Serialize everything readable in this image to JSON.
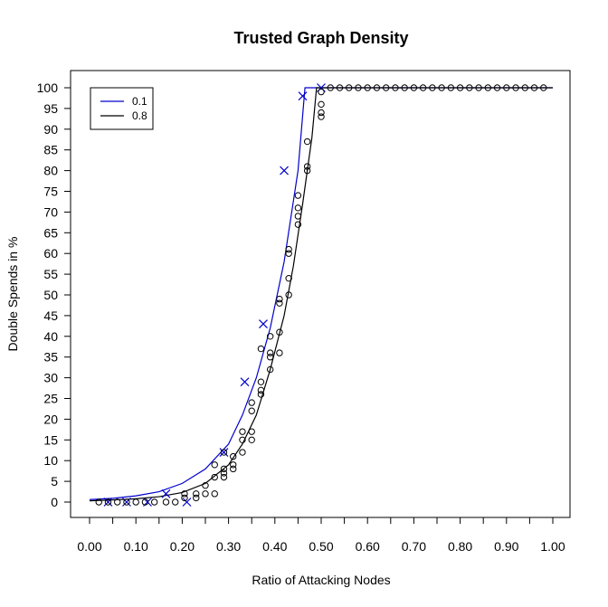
{
  "chart_data": {
    "type": "scatter",
    "title": "Trusted Graph Density",
    "xlabel": "Ratio of Attacking Nodes",
    "ylabel": "Double Spends in %",
    "xlim": [
      0.0,
      1.0
    ],
    "ylim": [
      0,
      100
    ],
    "x_ticks": [
      0.0,
      0.1,
      0.2,
      0.3,
      0.4,
      0.5,
      0.6,
      0.7,
      0.8,
      0.9,
      1.0
    ],
    "x_tick_labels": [
      "0.00",
      "0.10",
      "0.20",
      "0.30",
      "0.40",
      "0.50",
      "0.60",
      "0.70",
      "0.80",
      "0.90",
      "1.00"
    ],
    "y_ticks": [
      0,
      5,
      10,
      15,
      20,
      25,
      30,
      35,
      40,
      45,
      50,
      55,
      60,
      65,
      70,
      75,
      80,
      85,
      90,
      95,
      100
    ],
    "y_tick_labels": [
      "0",
      "5",
      "10",
      "15",
      "20",
      "25",
      "30",
      "35",
      "40",
      "45",
      "50",
      "55",
      "60",
      "65",
      "70",
      "75",
      "80",
      "85",
      "90",
      "95",
      "100"
    ],
    "grid": false,
    "legend_position": "top-left",
    "series": [
      {
        "name": "0.1",
        "color": "#0000cc",
        "marker": "x",
        "points": [
          [
            0.04,
            0
          ],
          [
            0.08,
            0
          ],
          [
            0.125,
            0
          ],
          [
            0.165,
            2
          ],
          [
            0.21,
            0
          ],
          [
            0.29,
            12
          ],
          [
            0.335,
            29
          ],
          [
            0.375,
            43
          ],
          [
            0.42,
            80
          ],
          [
            0.46,
            98
          ],
          [
            0.5,
            100
          ]
        ],
        "curve": [
          [
            0.0,
            0.6
          ],
          [
            0.05,
            0.9
          ],
          [
            0.1,
            1.5
          ],
          [
            0.15,
            2.5
          ],
          [
            0.2,
            4.5
          ],
          [
            0.25,
            8
          ],
          [
            0.3,
            14
          ],
          [
            0.33,
            21
          ],
          [
            0.36,
            30
          ],
          [
            0.39,
            42
          ],
          [
            0.42,
            58
          ],
          [
            0.45,
            80
          ],
          [
            0.465,
            100
          ],
          [
            0.5,
            100
          ],
          [
            1.0,
            100
          ]
        ]
      },
      {
        "name": "0.8",
        "color": "#000000",
        "marker": "circle",
        "points": [
          [
            0.02,
            0
          ],
          [
            0.04,
            0
          ],
          [
            0.06,
            0
          ],
          [
            0.08,
            0
          ],
          [
            0.1,
            0
          ],
          [
            0.12,
            0
          ],
          [
            0.14,
            0
          ],
          [
            0.165,
            0
          ],
          [
            0.185,
            0
          ],
          [
            0.205,
            1
          ],
          [
            0.205,
            2
          ],
          [
            0.23,
            1
          ],
          [
            0.23,
            2
          ],
          [
            0.25,
            2
          ],
          [
            0.25,
            4
          ],
          [
            0.27,
            2
          ],
          [
            0.27,
            6
          ],
          [
            0.27,
            9
          ],
          [
            0.29,
            6
          ],
          [
            0.29,
            7
          ],
          [
            0.29,
            8
          ],
          [
            0.29,
            12
          ],
          [
            0.31,
            8
          ],
          [
            0.31,
            9
          ],
          [
            0.31,
            11
          ],
          [
            0.33,
            12
          ],
          [
            0.33,
            15
          ],
          [
            0.33,
            17
          ],
          [
            0.35,
            15
          ],
          [
            0.35,
            17
          ],
          [
            0.35,
            22
          ],
          [
            0.35,
            24
          ],
          [
            0.37,
            26
          ],
          [
            0.37,
            27
          ],
          [
            0.37,
            29
          ],
          [
            0.37,
            37
          ],
          [
            0.39,
            32
          ],
          [
            0.39,
            35
          ],
          [
            0.39,
            36
          ],
          [
            0.39,
            40
          ],
          [
            0.41,
            36
          ],
          [
            0.41,
            41
          ],
          [
            0.41,
            48
          ],
          [
            0.41,
            49
          ],
          [
            0.43,
            50
          ],
          [
            0.43,
            54
          ],
          [
            0.43,
            60
          ],
          [
            0.43,
            61
          ],
          [
            0.45,
            67
          ],
          [
            0.45,
            69
          ],
          [
            0.45,
            71
          ],
          [
            0.45,
            74
          ],
          [
            0.47,
            80
          ],
          [
            0.47,
            81
          ],
          [
            0.47,
            87
          ],
          [
            0.5,
            93
          ],
          [
            0.5,
            94
          ],
          [
            0.5,
            96
          ],
          [
            0.5,
            99
          ],
          [
            0.52,
            100
          ],
          [
            0.54,
            100
          ],
          [
            0.56,
            100
          ],
          [
            0.58,
            100
          ],
          [
            0.6,
            100
          ],
          [
            0.62,
            100
          ],
          [
            0.64,
            100
          ],
          [
            0.66,
            100
          ],
          [
            0.68,
            100
          ],
          [
            0.7,
            100
          ],
          [
            0.72,
            100
          ],
          [
            0.74,
            100
          ],
          [
            0.76,
            100
          ],
          [
            0.78,
            100
          ],
          [
            0.8,
            100
          ],
          [
            0.82,
            100
          ],
          [
            0.84,
            100
          ],
          [
            0.86,
            100
          ],
          [
            0.88,
            100
          ],
          [
            0.9,
            100
          ],
          [
            0.92,
            100
          ],
          [
            0.94,
            100
          ],
          [
            0.96,
            100
          ],
          [
            0.98,
            100
          ]
        ],
        "curve": [
          [
            0.0,
            0.3
          ],
          [
            0.05,
            0.5
          ],
          [
            0.1,
            0.8
          ],
          [
            0.15,
            1.3
          ],
          [
            0.2,
            2.3
          ],
          [
            0.25,
            4.5
          ],
          [
            0.3,
            9
          ],
          [
            0.33,
            14
          ],
          [
            0.36,
            21
          ],
          [
            0.39,
            32
          ],
          [
            0.42,
            45
          ],
          [
            0.44,
            57
          ],
          [
            0.46,
            72
          ],
          [
            0.48,
            88
          ],
          [
            0.49,
            100
          ],
          [
            0.5,
            100
          ],
          [
            1.0,
            100
          ]
        ]
      }
    ]
  }
}
